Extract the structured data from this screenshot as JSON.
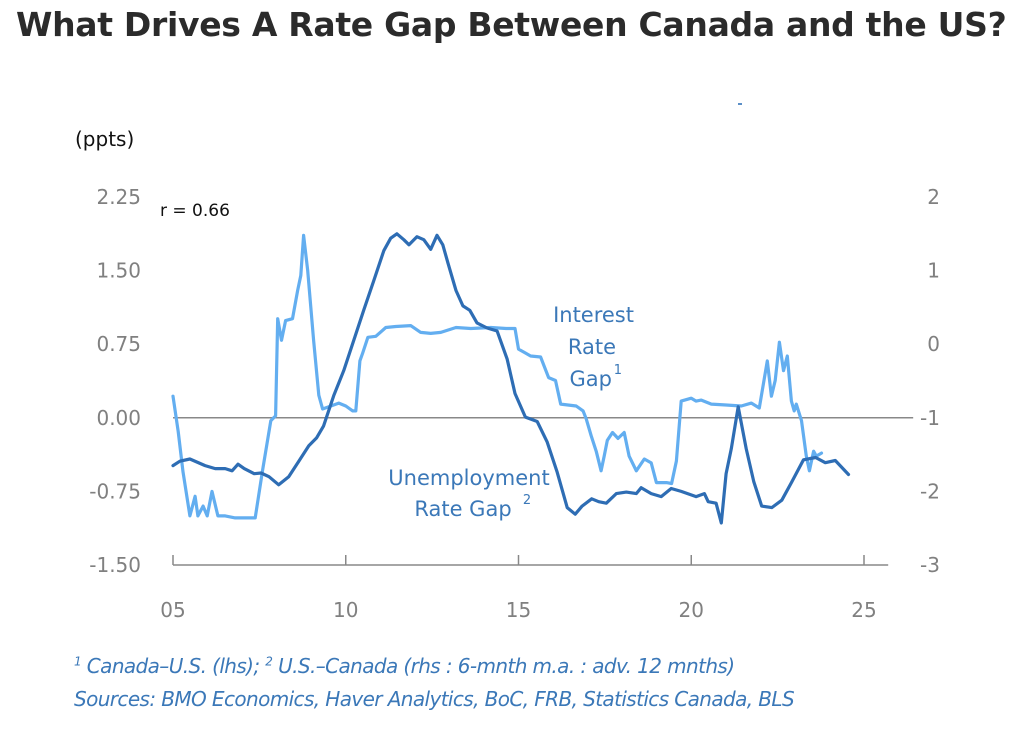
{
  "page": {
    "title": "What Drives A Rate Gap Between Canada and the US?"
  },
  "footnotes": {
    "line1_sup1": "1",
    "line1_text1": " Canada–U.S. (lhs); ",
    "line1_sup2": "2",
    "line1_text2": " U.S.–Canada (rhs : 6-mnth m.a. : adv. 12 mnths)",
    "line2": "Sources: BMO Economics, Haver Analytics, BoC, FRB, Statistics Canada, BLS"
  },
  "colors": {
    "interest_rate_gap": "#63aef0",
    "unemployment_rate_gap": "#2e6db4",
    "axis": "#888888",
    "label_text": "#3b78b8"
  },
  "chart_data": {
    "type": "line",
    "title": "What Drives A Rate Gap Between Canada and the US?",
    "xlabel": "",
    "ylabel": "(ppts)",
    "y2label": "",
    "annotation": "r = 0.66",
    "grid": false,
    "x_ticks": [
      2005,
      2010,
      2015,
      2020,
      2025
    ],
    "x_tick_labels": [
      "05",
      "10",
      "15",
      "20",
      "25"
    ],
    "xlim": [
      2005,
      2025.7
    ],
    "ylim": [
      -1.5,
      2.25
    ],
    "y_ticks": [
      2.25,
      1.5,
      0.75,
      0.0,
      -0.75,
      -1.5
    ],
    "y_tick_labels": [
      "2.25",
      "1.50",
      "0.75",
      "0.00",
      "-0.75",
      "-1.50"
    ],
    "y2lim": [
      -3,
      2
    ],
    "y2_ticks": [
      2,
      1,
      0,
      -1,
      -2,
      -3
    ],
    "y2_tick_labels": [
      "2",
      "1",
      "0",
      "-1",
      "-2",
      "-3"
    ],
    "zero_line": 0,
    "series": [
      {
        "name": "Interest Rate Gap",
        "label_lines": [
          "Interest",
          "Rate",
          "Gap"
        ],
        "label_sup": "1",
        "axis": "left",
        "x": [
          2005.0,
          2005.15,
          2005.29,
          2005.49,
          2005.64,
          2005.72,
          2005.87,
          2005.99,
          2006.13,
          2006.3,
          2006.51,
          2006.8,
          2007.17,
          2007.38,
          2007.59,
          2007.83,
          2007.97,
          2008.03,
          2008.14,
          2008.26,
          2008.46,
          2008.61,
          2008.7,
          2008.78,
          2008.9,
          2009.07,
          2009.22,
          2009.33,
          2009.57,
          2009.8,
          2010.0,
          2010.2,
          2010.29,
          2010.41,
          2010.49,
          2010.64,
          2010.87,
          2011.16,
          2011.45,
          2011.88,
          2012.17,
          2012.46,
          2012.75,
          2013.19,
          2013.62,
          2014.2,
          2014.64,
          2014.9,
          2015.0,
          2015.2,
          2015.35,
          2015.64,
          2015.87,
          2016.07,
          2016.22,
          2016.67,
          2016.87,
          2016.96,
          2017.1,
          2017.25,
          2017.39,
          2017.48,
          2017.57,
          2017.72,
          2017.88,
          2018.06,
          2018.2,
          2018.41,
          2018.64,
          2018.84,
          2018.99,
          2019.28,
          2019.43,
          2019.57,
          2019.71,
          2020.0,
          2020.14,
          2020.29,
          2020.58,
          2021.01,
          2021.45,
          2021.74,
          2021.97,
          2022.2,
          2022.32,
          2022.43,
          2022.55,
          2022.67,
          2022.78,
          2022.9,
          2022.98,
          2023.04,
          2023.19,
          2023.33,
          2023.42,
          2023.54,
          2023.62,
          2023.77
        ],
        "y": [
          0.22,
          -0.14,
          -0.55,
          -1.0,
          -0.8,
          -1.0,
          -0.9,
          -1.0,
          -0.75,
          -1.0,
          -1.0,
          -1.02,
          -1.02,
          -1.02,
          -0.54,
          -0.03,
          0.02,
          1.01,
          0.79,
          0.99,
          1.01,
          1.3,
          1.45,
          1.86,
          1.5,
          0.79,
          0.23,
          0.09,
          0.12,
          0.15,
          0.12,
          0.07,
          0.07,
          0.58,
          0.66,
          0.82,
          0.83,
          0.92,
          0.93,
          0.94,
          0.87,
          0.86,
          0.87,
          0.92,
          0.91,
          0.92,
          0.91,
          0.91,
          0.7,
          0.66,
          0.63,
          0.62,
          0.41,
          0.38,
          0.14,
          0.12,
          0.07,
          -0.01,
          -0.18,
          -0.34,
          -0.54,
          -0.39,
          -0.23,
          -0.15,
          -0.21,
          -0.15,
          -0.39,
          -0.54,
          -0.42,
          -0.46,
          -0.66,
          -0.66,
          -0.67,
          -0.44,
          0.17,
          0.2,
          0.17,
          0.18,
          0.14,
          0.13,
          0.12,
          0.15,
          0.1,
          0.58,
          0.22,
          0.38,
          0.77,
          0.48,
          0.63,
          0.17,
          0.07,
          0.14,
          -0.03,
          -0.39,
          -0.54,
          -0.34,
          -0.39,
          -0.36
        ]
      },
      {
        "name": "Unemployment Rate Gap",
        "label_lines": [
          "Unemployment",
          "Rate Gap"
        ],
        "label_sup": "2",
        "axis": "right",
        "x": [
          2005.0,
          2005.2,
          2005.49,
          2005.93,
          2006.22,
          2006.51,
          2006.71,
          2006.88,
          2007.06,
          2007.35,
          2007.55,
          2007.78,
          2008.06,
          2008.35,
          2008.64,
          2008.93,
          2009.16,
          2009.36,
          2009.65,
          2009.94,
          2010.23,
          2010.52,
          2010.81,
          2011.1,
          2011.3,
          2011.48,
          2011.68,
          2011.83,
          2012.06,
          2012.26,
          2012.46,
          2012.64,
          2012.81,
          2012.96,
          2013.19,
          2013.39,
          2013.59,
          2013.8,
          2014.09,
          2014.38,
          2014.67,
          2014.9,
          2015.2,
          2015.54,
          2015.83,
          2016.12,
          2016.41,
          2016.64,
          2016.84,
          2017.12,
          2017.32,
          2017.54,
          2017.83,
          2018.12,
          2018.41,
          2018.55,
          2018.84,
          2019.13,
          2019.42,
          2019.71,
          2020.14,
          2020.38,
          2020.49,
          2020.72,
          2020.87,
          2021.01,
          2021.16,
          2021.36,
          2021.59,
          2021.81,
          2022.04,
          2022.33,
          2022.62,
          2022.9,
          2023.25,
          2023.6,
          2023.88,
          2024.17,
          2024.55
        ],
        "y": [
          -1.65,
          -1.59,
          -1.56,
          -1.65,
          -1.69,
          -1.69,
          -1.72,
          -1.63,
          -1.69,
          -1.76,
          -1.75,
          -1.8,
          -1.91,
          -1.8,
          -1.59,
          -1.38,
          -1.27,
          -1.11,
          -0.7,
          -0.36,
          0.05,
          0.46,
          0.86,
          1.27,
          1.44,
          1.5,
          1.42,
          1.35,
          1.46,
          1.42,
          1.29,
          1.48,
          1.35,
          1.1,
          0.73,
          0.52,
          0.46,
          0.29,
          0.22,
          0.18,
          -0.2,
          -0.67,
          -0.99,
          -1.05,
          -1.33,
          -1.74,
          -2.22,
          -2.31,
          -2.2,
          -2.1,
          -2.14,
          -2.16,
          -2.03,
          -2.01,
          -2.03,
          -1.95,
          -2.03,
          -2.07,
          -1.96,
          -2.0,
          -2.07,
          -2.03,
          -2.14,
          -2.16,
          -2.43,
          -1.76,
          -1.42,
          -0.85,
          -1.42,
          -1.87,
          -2.2,
          -2.22,
          -2.12,
          -1.88,
          -1.57,
          -1.54,
          -1.61,
          -1.58,
          -1.77
        ]
      }
    ]
  }
}
